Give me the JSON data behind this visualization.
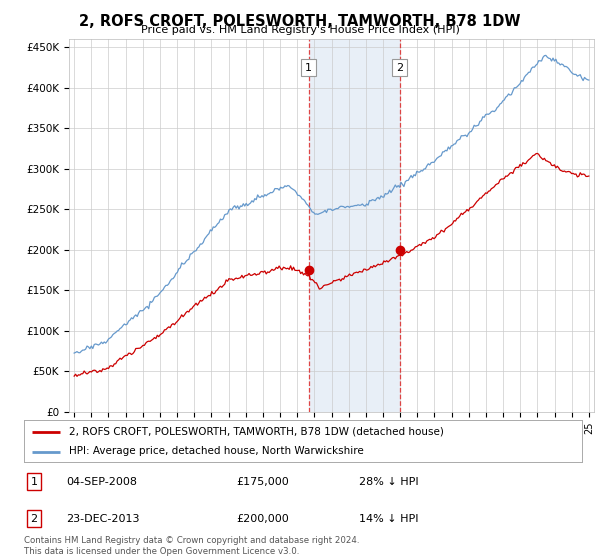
{
  "title": "2, ROFS CROFT, POLESWORTH, TAMWORTH, B78 1DW",
  "subtitle": "Price paid vs. HM Land Registry's House Price Index (HPI)",
  "legend_line1": "2, ROFS CROFT, POLESWORTH, TAMWORTH, B78 1DW (detached house)",
  "legend_line2": "HPI: Average price, detached house, North Warwickshire",
  "transaction1_date": "04-SEP-2008",
  "transaction1_price": "£175,000",
  "transaction1_hpi": "28% ↓ HPI",
  "transaction2_date": "23-DEC-2013",
  "transaction2_price": "£200,000",
  "transaction2_hpi": "14% ↓ HPI",
  "footnote": "Contains HM Land Registry data © Crown copyright and database right 2024.\nThis data is licensed under the Open Government Licence v3.0.",
  "house_color": "#cc0000",
  "hpi_color": "#6699cc",
  "highlight_color": "#ddeeff",
  "ylim_min": 0,
  "ylim_max": 460000,
  "yticks": [
    0,
    50000,
    100000,
    150000,
    200000,
    250000,
    300000,
    350000,
    400000,
    450000
  ],
  "ytick_labels": [
    "£0",
    "£50K",
    "£100K",
    "£150K",
    "£200K",
    "£250K",
    "£300K",
    "£350K",
    "£400K",
    "£450K"
  ],
  "transaction1_year": 2008.67,
  "transaction2_year": 2013.97,
  "marker1_price": 175000,
  "marker2_price": 200000,
  "background_color": "#ffffff",
  "grid_color": "#cccccc"
}
